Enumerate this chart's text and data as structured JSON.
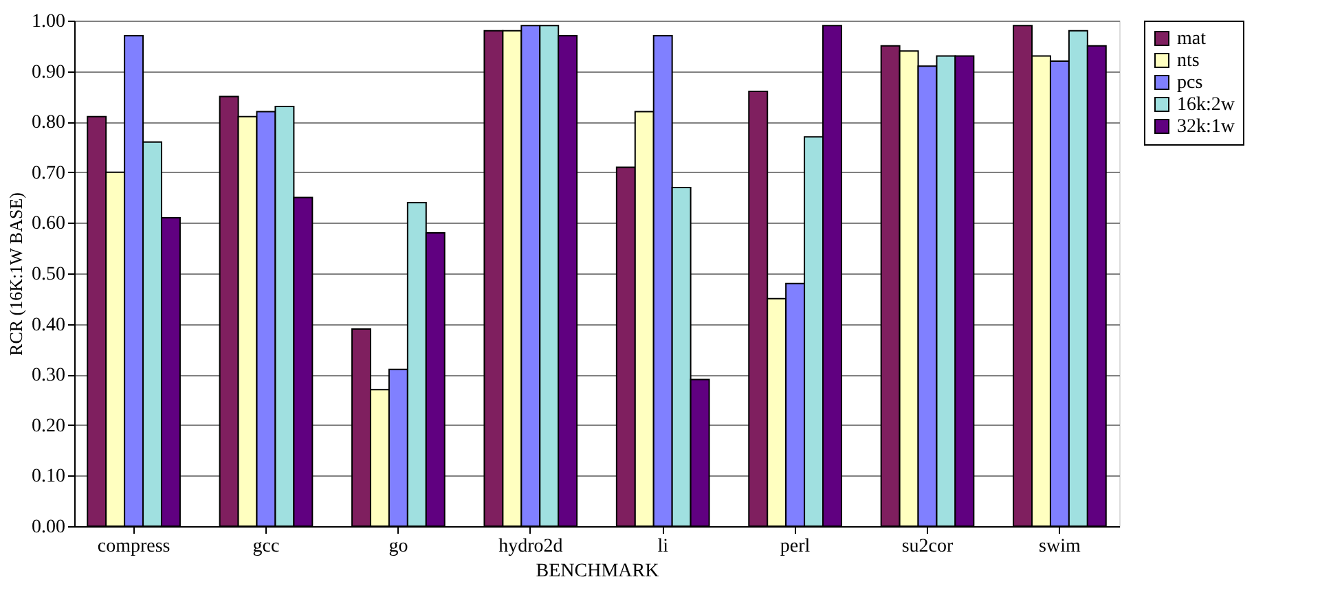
{
  "chart_data": {
    "type": "bar",
    "xlabel": "BENCHMARK",
    "ylabel": "RCR (16K:1W BASE)",
    "categories": [
      "compress",
      "gcc",
      "go",
      "hydro2d",
      "li",
      "perl",
      "su2cor",
      "swim"
    ],
    "series": [
      {
        "name": "mat",
        "color": "#7f1f5f",
        "values": [
          0.81,
          0.85,
          0.39,
          0.98,
          0.71,
          0.86,
          0.95,
          0.99
        ]
      },
      {
        "name": "nts",
        "color": "#ffffc0",
        "values": [
          0.7,
          0.81,
          0.27,
          0.98,
          0.82,
          0.45,
          0.94,
          0.93
        ]
      },
      {
        "name": "pcs",
        "color": "#8080ff",
        "values": [
          0.97,
          0.82,
          0.31,
          0.99,
          0.97,
          0.48,
          0.91,
          0.92
        ]
      },
      {
        "name": "16k:2w",
        "color": "#a0e0e0",
        "values": [
          0.76,
          0.83,
          0.64,
          0.99,
          0.67,
          0.77,
          0.93,
          0.98
        ]
      },
      {
        "name": "32k:1w",
        "color": "#600080",
        "values": [
          0.61,
          0.65,
          0.58,
          0.97,
          0.29,
          0.99,
          0.93,
          0.95
        ]
      }
    ],
    "ylim": [
      0,
      1
    ],
    "yticks": [
      {
        "value": 0,
        "label": "0.00"
      },
      {
        "value": 0.1,
        "label": "0.10"
      },
      {
        "value": 0.2,
        "label": "0.20"
      },
      {
        "value": 0.3,
        "label": "0.30"
      },
      {
        "value": 0.4,
        "label": "0.40"
      },
      {
        "value": 0.5,
        "label": "0.50"
      },
      {
        "value": 0.6,
        "label": "0.60"
      },
      {
        "value": 0.7,
        "label": "0.70"
      },
      {
        "value": 0.8,
        "label": "0.80"
      },
      {
        "value": 0.9,
        "label": "0.90"
      },
      {
        "value": 1,
        "label": "1.00"
      }
    ],
    "grid": "y",
    "legend": "right"
  }
}
